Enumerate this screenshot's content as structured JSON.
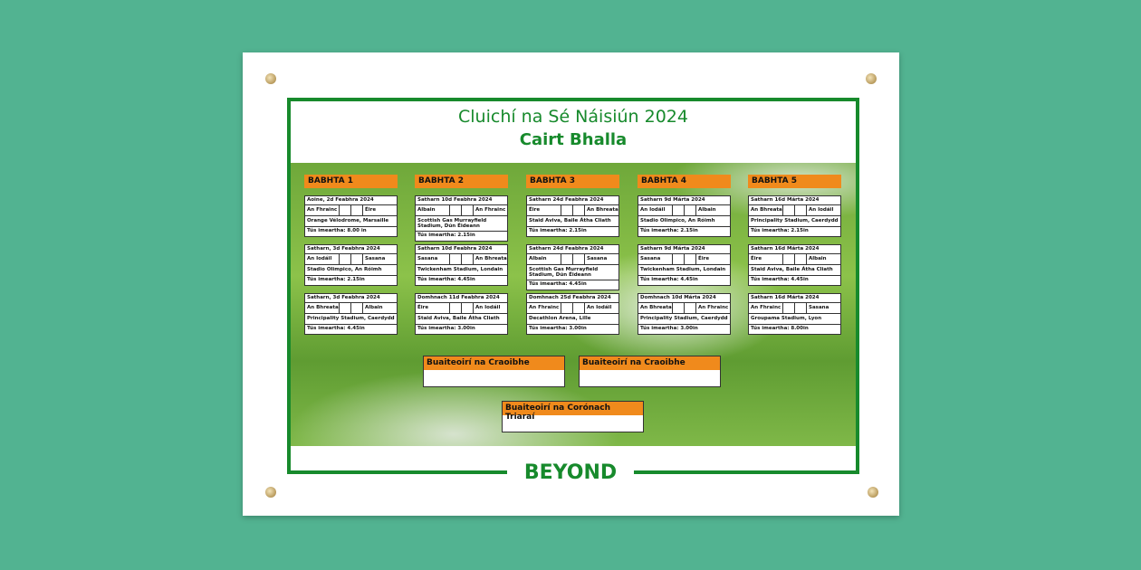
{
  "title": "Cluichí na Sé Náisiún 2024",
  "subtitle": "Cairt Bhalla",
  "brand": "BEYOND",
  "colors": {
    "background": "#52b391",
    "brand_green": "#178a2c",
    "header_orange": "#f08a1c"
  },
  "rounds": [
    {
      "label": "BABHTA 1",
      "matches": [
        {
          "date": "Aoine, 2d Feabhra 2024",
          "home": "An Fhrainc",
          "away": "Éire",
          "venue": "Orange Vélodrome, Marsaille",
          "time": "Tús imeartha: 8.00 in"
        },
        {
          "date": "Satharn, 3d Feabhra 2024",
          "home": "An Iodáil",
          "away": "Sasana",
          "venue": "Stadio Olimpico, An Róimh",
          "time": "Tús imeartha: 2.15in"
        },
        {
          "date": "Satharn, 3d Feabhra 2024",
          "home": "An Bhreatain Bheag",
          "away": "Albain",
          "venue": "Principality Stadium, Caerdydd",
          "time": "Tús imeartha: 4.45in"
        }
      ]
    },
    {
      "label": "BABHTA 2",
      "matches": [
        {
          "date": "Satharn 10d Feabhra 2024",
          "home": "Albain",
          "away": "An Fhrainc",
          "venue": "Scottish Gas Murrayfield Stadium, Dún Éideann",
          "time": "Tús imeartha: 2.15in"
        },
        {
          "date": "Satharn 10d Feabhra 2024",
          "home": "Sasana",
          "away": "An Bhreatain Bheag",
          "venue": "Twickenham Stadium, Londain",
          "time": "Tús imeartha: 4.45in"
        },
        {
          "date": "Domhnach 11d Feabhra 2024",
          "home": "Éire",
          "away": "An Iodáil",
          "venue": "Staid Aviva, Baile Átha Cliath",
          "time": "Tús imeartha: 3.00in"
        }
      ]
    },
    {
      "label": "BABHTA 3",
      "matches": [
        {
          "date": "Satharn 24d Feabhra 2024",
          "home": "Éire",
          "away": "An Bhreatain Bheag",
          "venue": "Staid Aviva, Baile Átha Cliath",
          "time": "Tús imeartha: 2.15in"
        },
        {
          "date": "Satharn 24d Feabhra 2024",
          "home": "Albain",
          "away": "Sasana",
          "venue": "Scottish Gas Murrayfield Stadium, Dún Éideann",
          "time": "Tús imeartha: 4.45in"
        },
        {
          "date": "Domhnach 25d Feabhra 2024",
          "home": "An Fhrainc",
          "away": "An Iodáil",
          "venue": "Decathlon Arena, Lille",
          "time": "Tús imeartha: 3.00in"
        }
      ]
    },
    {
      "label": "BABHTA 4",
      "matches": [
        {
          "date": "Satharn 9d Márta 2024",
          "home": "An Iodáil",
          "away": "Albain",
          "venue": "Stadio Olimpico, An Róimh",
          "time": "Tús imeartha: 2.15in"
        },
        {
          "date": "Satharn 9d Márta 2024",
          "home": "Sasana",
          "away": "Éire",
          "venue": "Twickenham Stadium, Londain",
          "time": "Tús imeartha: 4.45in"
        },
        {
          "date": "Domhnach 10d Márta 2024",
          "home": "An Bhreatain Bheag",
          "away": "An Fhrainc",
          "venue": "Principality Stadium, Caerdydd",
          "time": "Tús imeartha: 3.00in"
        }
      ]
    },
    {
      "label": "BABHTA 5",
      "matches": [
        {
          "date": "Satharn 16d Márta 2024",
          "home": "An Bhreatain Bheag",
          "away": "An Iodáil",
          "venue": "Principality Stadium, Caerdydd",
          "time": "Tús imeartha: 2.15in"
        },
        {
          "date": "Satharn 16d Márta 2024",
          "home": "Éire",
          "away": "Albain",
          "venue": "Staid Aviva, Baile Átha Cliath",
          "time": "Tús imeartha: 4.45in"
        },
        {
          "date": "Satharn 16d Márta 2024",
          "home": "An Fhrainc",
          "away": "Sasana",
          "venue": "Groupama Stadium, Lyon",
          "time": "Tús imeartha: 8.00in"
        }
      ]
    }
  ],
  "winners": [
    {
      "label": "Buaiteoirí na Craoibhe"
    },
    {
      "label": "Buaiteoirí na Craoibhe"
    },
    {
      "label": "Buaiteoirí na Corónach Triaraí"
    }
  ]
}
